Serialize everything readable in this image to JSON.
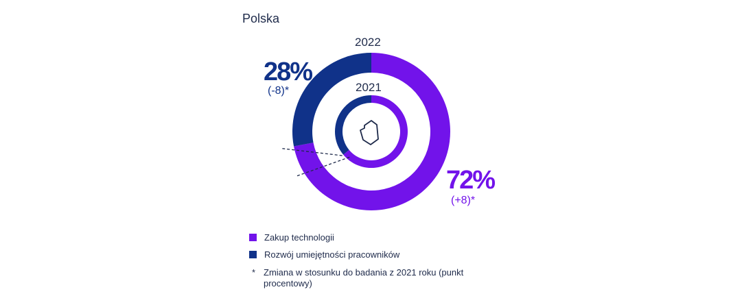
{
  "title": "Polska",
  "colors": {
    "purple": "#7213ea",
    "blue": "#103289",
    "text": "#1e2a4a",
    "dash": "#1e2a4a"
  },
  "chart_data": {
    "type": "donut",
    "rings": [
      {
        "name": "2022",
        "slices": [
          {
            "label": "Rozwój umiejętności pracowników",
            "value": 28,
            "display": "28%",
            "change": "(-8)*"
          },
          {
            "label": "Zakup technologii",
            "value": 72,
            "display": "72%",
            "change": "(+8)*"
          }
        ]
      },
      {
        "name": "2021",
        "slices": [
          {
            "label": "Rozwój umiejętności pracowników",
            "value": 36
          },
          {
            "label": "Zakup technologii",
            "value": 64
          }
        ]
      }
    ],
    "center_icon": "poland-map-outline-icon",
    "legend": [
      {
        "label": "Zakup technologii",
        "color": "#7213ea"
      },
      {
        "label": "Rozwój umiejętności pracowników",
        "color": "#103289"
      }
    ],
    "legend_position": "bottom-left",
    "note": {
      "symbol": "*",
      "text": "Zmiana w stosunku do badania z 2021 roku (punkt procentowy)"
    }
  }
}
